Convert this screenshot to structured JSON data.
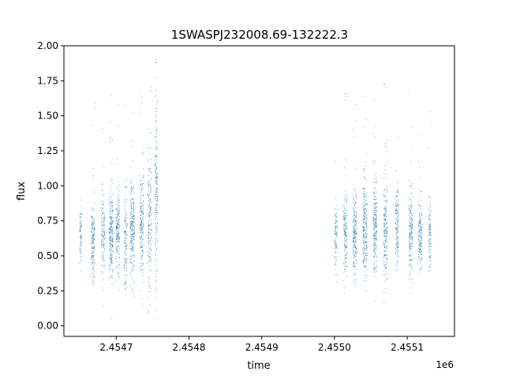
{
  "chart_data": {
    "type": "scatter",
    "title": "1SWASPJ232008.69-132222.3",
    "xlabel": "time",
    "ylabel": "flux",
    "x_offset_label": "1e6",
    "xlim": [
      2454628,
      2455165
    ],
    "ylim": [
      -0.075,
      2.0
    ],
    "x_ticks": [
      2454700,
      2454800,
      2454900,
      2455000,
      2455100
    ],
    "x_tick_labels": [
      "2.4547",
      "2.4548",
      "2.4549",
      "2.4550",
      "2.4551"
    ],
    "y_ticks": [
      0.0,
      0.25,
      0.5,
      0.75,
      1.0,
      1.25,
      1.5,
      1.75,
      2.0
    ],
    "y_tick_labels": [
      "0.00",
      "0.25",
      "0.50",
      "0.75",
      "1.00",
      "1.25",
      "1.50",
      "1.75",
      "2.00"
    ],
    "grid": false,
    "marker_color": "#1f77b4",
    "series": [
      {
        "clusters": [
          {
            "x": 2454651,
            "width": 3,
            "center": 0.65,
            "spread": 0.1,
            "n": 80
          },
          {
            "x": 2454668,
            "width": 5,
            "center": 0.6,
            "spread": 0.12,
            "n": 180
          },
          {
            "x": 2454682,
            "width": 5,
            "center": 0.65,
            "spread": 0.15,
            "n": 150
          },
          {
            "x": 2454693,
            "width": 5,
            "center": 0.66,
            "spread": 0.15,
            "n": 260
          },
          {
            "x": 2454702,
            "width": 5,
            "center": 0.65,
            "spread": 0.15,
            "n": 200
          },
          {
            "x": 2454713,
            "width": 4,
            "center": 0.6,
            "spread": 0.18,
            "n": 140
          },
          {
            "x": 2454722,
            "width": 6,
            "center": 0.68,
            "spread": 0.18,
            "n": 260
          },
          {
            "x": 2454735,
            "width": 5,
            "center": 0.68,
            "spread": 0.2,
            "n": 220
          },
          {
            "x": 2454746,
            "width": 5,
            "center": 0.75,
            "spread": 0.25,
            "n": 200
          },
          {
            "x": 2454755,
            "width": 4,
            "center": 1.0,
            "spread": 0.35,
            "n": 200
          },
          {
            "x": 2455002,
            "width": 4,
            "center": 0.65,
            "spread": 0.12,
            "n": 100
          },
          {
            "x": 2455015,
            "width": 5,
            "center": 0.65,
            "spread": 0.15,
            "n": 180
          },
          {
            "x": 2455028,
            "width": 5,
            "center": 0.65,
            "spread": 0.15,
            "n": 220
          },
          {
            "x": 2455042,
            "width": 6,
            "center": 0.68,
            "spread": 0.18,
            "n": 260
          },
          {
            "x": 2455056,
            "width": 5,
            "center": 0.68,
            "spread": 0.18,
            "n": 240
          },
          {
            "x": 2455070,
            "width": 5,
            "center": 0.7,
            "spread": 0.2,
            "n": 220
          },
          {
            "x": 2455086,
            "width": 4,
            "center": 0.7,
            "spread": 0.15,
            "n": 160
          },
          {
            "x": 2455105,
            "width": 5,
            "center": 0.65,
            "spread": 0.15,
            "n": 200
          },
          {
            "x": 2455118,
            "width": 5,
            "center": 0.65,
            "spread": 0.12,
            "n": 180
          },
          {
            "x": 2455131,
            "width": 3,
            "center": 0.65,
            "spread": 0.12,
            "n": 100
          }
        ]
      }
    ]
  }
}
